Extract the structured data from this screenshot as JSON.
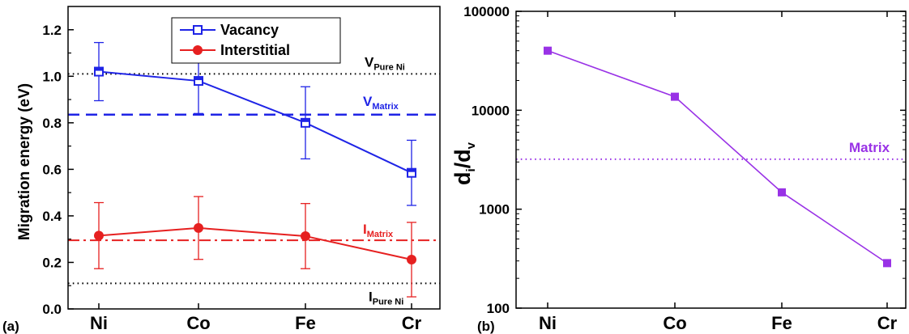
{
  "chart_data": [
    {
      "type": "line",
      "panel_label": "(a)",
      "categories": [
        "Ni",
        "Co",
        "Fe",
        "Cr"
      ],
      "ylabel": "Migration energy (eV)",
      "ylim": [
        0.0,
        1.3
      ],
      "yticks": [
        "0.0",
        "0.2",
        "0.4",
        "0.6",
        "0.8",
        "1.0",
        "1.2"
      ],
      "series": [
        {
          "name": "Vacancy",
          "color": "#1f24e6",
          "marker": "open-square",
          "values": [
            1.02,
            0.98,
            0.8,
            0.585
          ],
          "errors": [
            0.125,
            0.14,
            0.155,
            0.14
          ]
        },
        {
          "name": "Interstitial",
          "color": "#e62020",
          "marker": "filled-circle",
          "values": [
            0.315,
            0.348,
            0.313,
            0.212
          ],
          "errors": [
            0.142,
            0.135,
            0.14,
            0.16
          ]
        }
      ],
      "reference_lines": [
        {
          "main": "V",
          "sub": "Pure Ni",
          "value": 1.01,
          "style": "dotted",
          "color": "#000000"
        },
        {
          "main": "V",
          "sub": "Matrix",
          "value": 0.835,
          "style": "dashed",
          "color": "#1f24e6"
        },
        {
          "main": "I",
          "sub": "Matrix",
          "value": 0.295,
          "style": "dashdot",
          "color": "#e62020"
        },
        {
          "main": "I",
          "sub": "Pure Ni",
          "value": 0.11,
          "style": "dotted",
          "color": "#000000"
        }
      ],
      "legend_position": "top-center"
    },
    {
      "type": "line",
      "panel_label": "(b)",
      "categories": [
        "Ni",
        "Co",
        "Fe",
        "Cr"
      ],
      "ylabel_main": "d",
      "ylabel_sub1": "i",
      "ylabel_mid": "/d",
      "ylabel_sub2": "v",
      "yscale": "log",
      "ylim": [
        100,
        100000
      ],
      "yticks": [
        "100",
        "1000",
        "10000",
        "100000"
      ],
      "series": [
        {
          "color": "#9932e6",
          "marker": "filled-square",
          "values": [
            40000,
            13700,
            1480,
            285
          ]
        }
      ],
      "reference_lines": [
        {
          "main": "Matrix",
          "value": 3200,
          "style": "dotted",
          "color": "#9932e6"
        }
      ]
    }
  ]
}
